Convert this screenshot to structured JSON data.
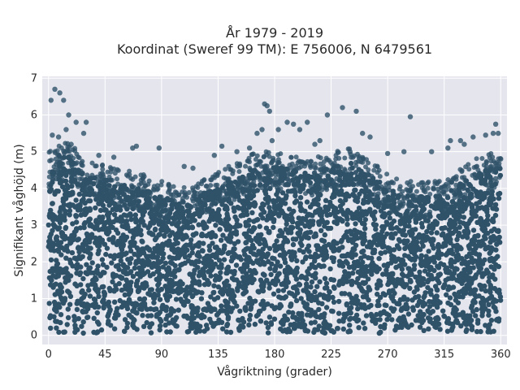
{
  "chart_data": {
    "type": "scatter",
    "title": "År 1979 - 2019",
    "subtitle": "Koordinat (Sweref 99 TM): E 756006, N 6479561",
    "xlabel": "Vågriktning (grader)",
    "ylabel": "Signifikant våghöjd (m)",
    "xlim": [
      -5,
      365
    ],
    "ylim": [
      -0.25,
      7.05
    ],
    "xticks": [
      0,
      45,
      90,
      135,
      180,
      225,
      270,
      315,
      360
    ],
    "yticks": [
      0,
      1,
      2,
      3,
      4,
      5,
      6,
      7
    ],
    "grid": true,
    "legend": "none",
    "series": [
      {
        "marker_color": "#2f5269",
        "bulk_band": {
          "y_min": 0.05,
          "upper_envelope": [
            [
              0,
              4.6
            ],
            [
              15,
              4.9
            ],
            [
              30,
              4.4
            ],
            [
              45,
              4.3
            ],
            [
              60,
              4.1
            ],
            [
              75,
              4.0
            ],
            [
              90,
              3.8
            ],
            [
              105,
              3.6
            ],
            [
              120,
              3.8
            ],
            [
              135,
              4.1
            ],
            [
              150,
              4.3
            ],
            [
              165,
              4.6
            ],
            [
              180,
              4.6
            ],
            [
              195,
              4.5
            ],
            [
              210,
              4.4
            ],
            [
              225,
              4.6
            ],
            [
              240,
              4.7
            ],
            [
              255,
              4.4
            ],
            [
              270,
              4.0
            ],
            [
              285,
              3.8
            ],
            [
              300,
              3.8
            ],
            [
              315,
              3.8
            ],
            [
              330,
              4.2
            ],
            [
              345,
              4.5
            ],
            [
              360,
              4.6
            ]
          ]
        },
        "notable_points": [
          [
            2,
            6.4
          ],
          [
            5,
            6.7
          ],
          [
            9,
            6.6
          ],
          [
            12,
            6.4
          ],
          [
            3,
            5.45
          ],
          [
            8,
            5.4
          ],
          [
            14,
            5.6
          ],
          [
            16,
            6.0
          ],
          [
            18,
            5.2
          ],
          [
            22,
            5.8
          ],
          [
            28,
            5.5
          ],
          [
            30,
            5.8
          ],
          [
            13,
            5.0
          ],
          [
            40,
            4.9
          ],
          [
            52,
            4.85
          ],
          [
            67,
            5.1
          ],
          [
            70,
            5.15
          ],
          [
            88,
            5.1
          ],
          [
            108,
            4.6
          ],
          [
            115,
            4.55
          ],
          [
            132,
            4.9
          ],
          [
            138,
            5.15
          ],
          [
            150,
            5.0
          ],
          [
            160,
            5.1
          ],
          [
            166,
            5.5
          ],
          [
            170,
            5.6
          ],
          [
            172,
            6.3
          ],
          [
            174,
            6.25
          ],
          [
            176,
            6.1
          ],
          [
            178,
            5.3
          ],
          [
            183,
            5.6
          ],
          [
            190,
            5.8
          ],
          [
            195,
            5.75
          ],
          [
            200,
            5.6
          ],
          [
            206,
            5.8
          ],
          [
            212,
            5.2
          ],
          [
            216,
            5.3
          ],
          [
            222,
            6.0
          ],
          [
            234,
            6.2
          ],
          [
            240,
            5.0
          ],
          [
            245,
            6.1
          ],
          [
            250,
            5.5
          ],
          [
            256,
            5.4
          ],
          [
            270,
            4.95
          ],
          [
            283,
            5.0
          ],
          [
            288,
            5.95
          ],
          [
            305,
            5.0
          ],
          [
            318,
            5.1
          ],
          [
            320,
            5.3
          ],
          [
            328,
            5.3
          ],
          [
            331,
            5.2
          ],
          [
            338,
            5.4
          ],
          [
            348,
            5.45
          ],
          [
            354,
            5.5
          ],
          [
            356,
            5.75
          ],
          [
            358,
            5.5
          ],
          [
            360,
            4.8
          ]
        ]
      }
    ]
  }
}
